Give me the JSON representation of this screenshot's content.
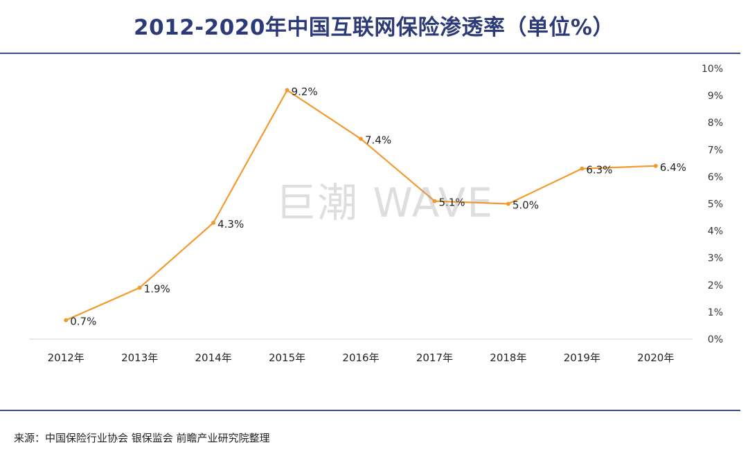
{
  "title": "2012-2020年中国互联网保险渗透率（单位%）",
  "watermark": "巨潮 WAVE",
  "source": "来源：中国保险行业协会 银保监会 前瞻产业研究院整理",
  "colors": {
    "line": "#f39a2e",
    "title": "#2d3a78",
    "rule": "#3b4a8a",
    "axis": "#d9d9d9"
  },
  "chart_data": {
    "type": "line",
    "title": "2012-2020年中国互联网保险渗透率（单位%）",
    "categories": [
      "2012年",
      "2013年",
      "2014年",
      "2015年",
      "2016年",
      "2017年",
      "2018年",
      "2019年",
      "2020年"
    ],
    "series": [
      {
        "values": [
          0.7,
          1.9,
          4.3,
          9.2,
          7.4,
          5.1,
          5.0,
          6.3,
          6.4
        ]
      }
    ],
    "data_labels": [
      "0.7%",
      "1.9%",
      "4.3%",
      "9.2%",
      "7.4%",
      "5.1%",
      "5.0%",
      "6.3%",
      "6.4%"
    ],
    "y_ticks": [
      "0%",
      "1%",
      "2%",
      "3%",
      "4%",
      "5%",
      "6%",
      "7%",
      "8%",
      "9%",
      "10%"
    ],
    "ylim": [
      0,
      10
    ],
    "y_axis_position": "right",
    "grid": false,
    "legend": false
  }
}
